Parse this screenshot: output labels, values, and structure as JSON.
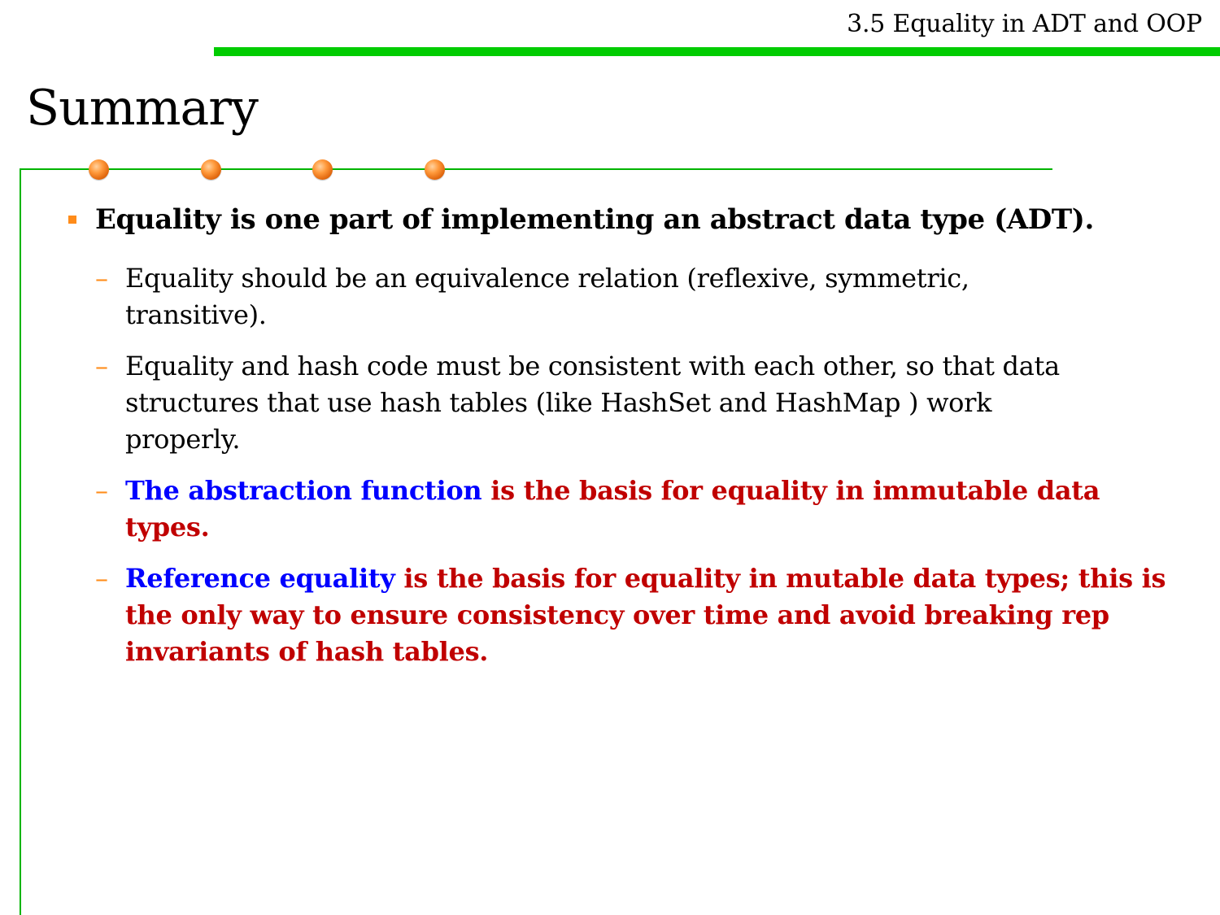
{
  "header": {
    "title": "3.5 Equality in ADT and OOP",
    "bar_color": "#00cc00"
  },
  "slide": {
    "title": "Summary",
    "frame_color": "#00b400",
    "accent_color": "#ff8c1a"
  },
  "colors": {
    "blue": "#0000ff",
    "red": "#c00000",
    "dash": "#ff8c1a"
  },
  "content": {
    "main_bullet": "Equality is one part of implementing an abstract data type (ADT).",
    "sub1": {
      "lines": [
        "Equality should be an equivalence relation (reflexive, symmetric,",
        "transitive)."
      ]
    },
    "sub2": {
      "lines": [
        "Equality and hash code must be consistent with each other, so that data",
        "structures that use hash tables (like HashSet and HashMap ) work",
        "properly."
      ]
    },
    "sub3": {
      "blue": "The abstraction function",
      "red_line1": " is the basis for equality in immutable data",
      "red_line2": "types."
    },
    "sub4": {
      "blue": "Reference equality",
      "red_line1": " is the basis for equality in mutable data types; this is",
      "red_line2": "the only way to ensure consistency over time and avoid breaking rep",
      "red_line3": "invariants of hash tables."
    },
    "dash_symbol": "–"
  }
}
